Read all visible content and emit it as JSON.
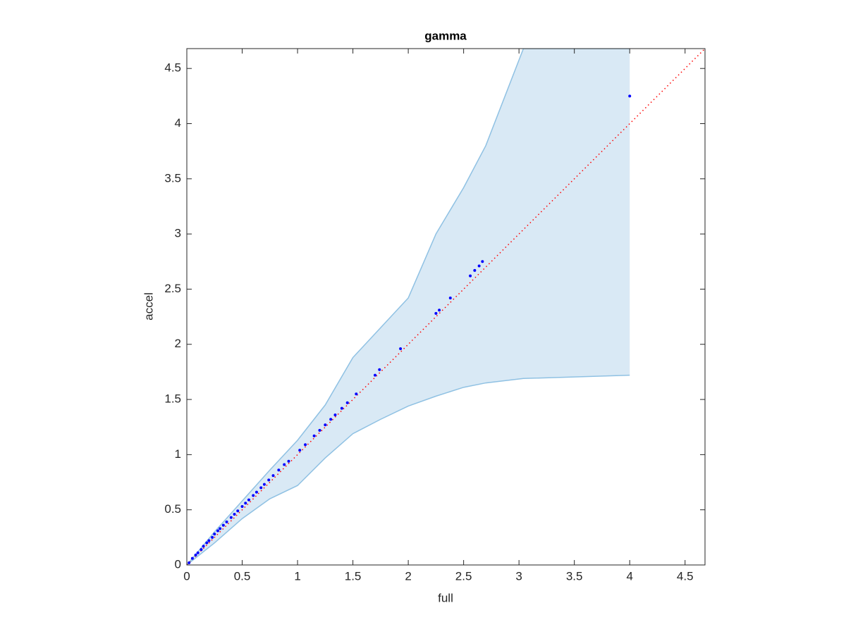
{
  "chart_data": {
    "type": "scatter",
    "title": "gamma",
    "x_label": "full",
    "y_label": "accel",
    "xlim": [
      0,
      4.68
    ],
    "ylim": [
      0,
      4.68
    ],
    "xticks": [
      0,
      0.5,
      1,
      1.5,
      2,
      2.5,
      3,
      3.5,
      4,
      4.5
    ],
    "yticks": [
      0,
      0.5,
      1,
      1.5,
      2,
      2.5,
      3,
      3.5,
      4,
      4.5
    ],
    "band": {
      "color": "#8fc1e3",
      "fill": "#d9e9f5",
      "x": [
        0,
        0.25,
        0.5,
        0.75,
        1,
        1.25,
        1.5,
        1.75,
        2,
        2.25,
        2.5,
        2.7,
        3.04,
        4
      ],
      "upper": [
        0,
        0.3,
        0.58,
        0.86,
        1.13,
        1.45,
        1.88,
        2.15,
        2.42,
        3.0,
        3.42,
        3.8,
        4.68,
        4.68
      ],
      "lower": [
        0,
        0.2,
        0.42,
        0.6,
        0.72,
        0.97,
        1.19,
        1.32,
        1.44,
        1.53,
        1.61,
        1.65,
        1.69,
        1.72
      ]
    },
    "reference_line": {
      "color": "#ff0000",
      "x": [
        0,
        4.68
      ],
      "values": [
        0,
        4.68
      ]
    },
    "points": {
      "color": "#0000ff",
      "x": [
        0.02,
        0.05,
        0.08,
        0.1,
        0.13,
        0.15,
        0.18,
        0.2,
        0.23,
        0.25,
        0.28,
        0.3,
        0.33,
        0.36,
        0.4,
        0.43,
        0.46,
        0.5,
        0.53,
        0.56,
        0.6,
        0.63,
        0.67,
        0.7,
        0.74,
        0.78,
        0.83,
        0.88,
        0.92,
        1.02,
        1.07,
        1.15,
        1.2,
        1.25,
        1.3,
        1.34,
        1.4,
        1.45,
        1.53,
        1.7,
        1.74,
        1.93,
        2.25,
        2.28,
        2.38,
        2.56,
        2.6,
        2.64,
        2.67,
        4.0
      ],
      "values": [
        0.02,
        0.06,
        0.09,
        0.11,
        0.14,
        0.17,
        0.2,
        0.22,
        0.25,
        0.28,
        0.31,
        0.33,
        0.36,
        0.39,
        0.43,
        0.46,
        0.49,
        0.53,
        0.56,
        0.59,
        0.63,
        0.66,
        0.7,
        0.73,
        0.77,
        0.81,
        0.86,
        0.91,
        0.94,
        1.04,
        1.09,
        1.17,
        1.22,
        1.27,
        1.32,
        1.36,
        1.42,
        1.47,
        1.55,
        1.72,
        1.77,
        1.96,
        2.28,
        2.31,
        2.42,
        2.62,
        2.67,
        2.71,
        2.75,
        4.25
      ]
    }
  }
}
